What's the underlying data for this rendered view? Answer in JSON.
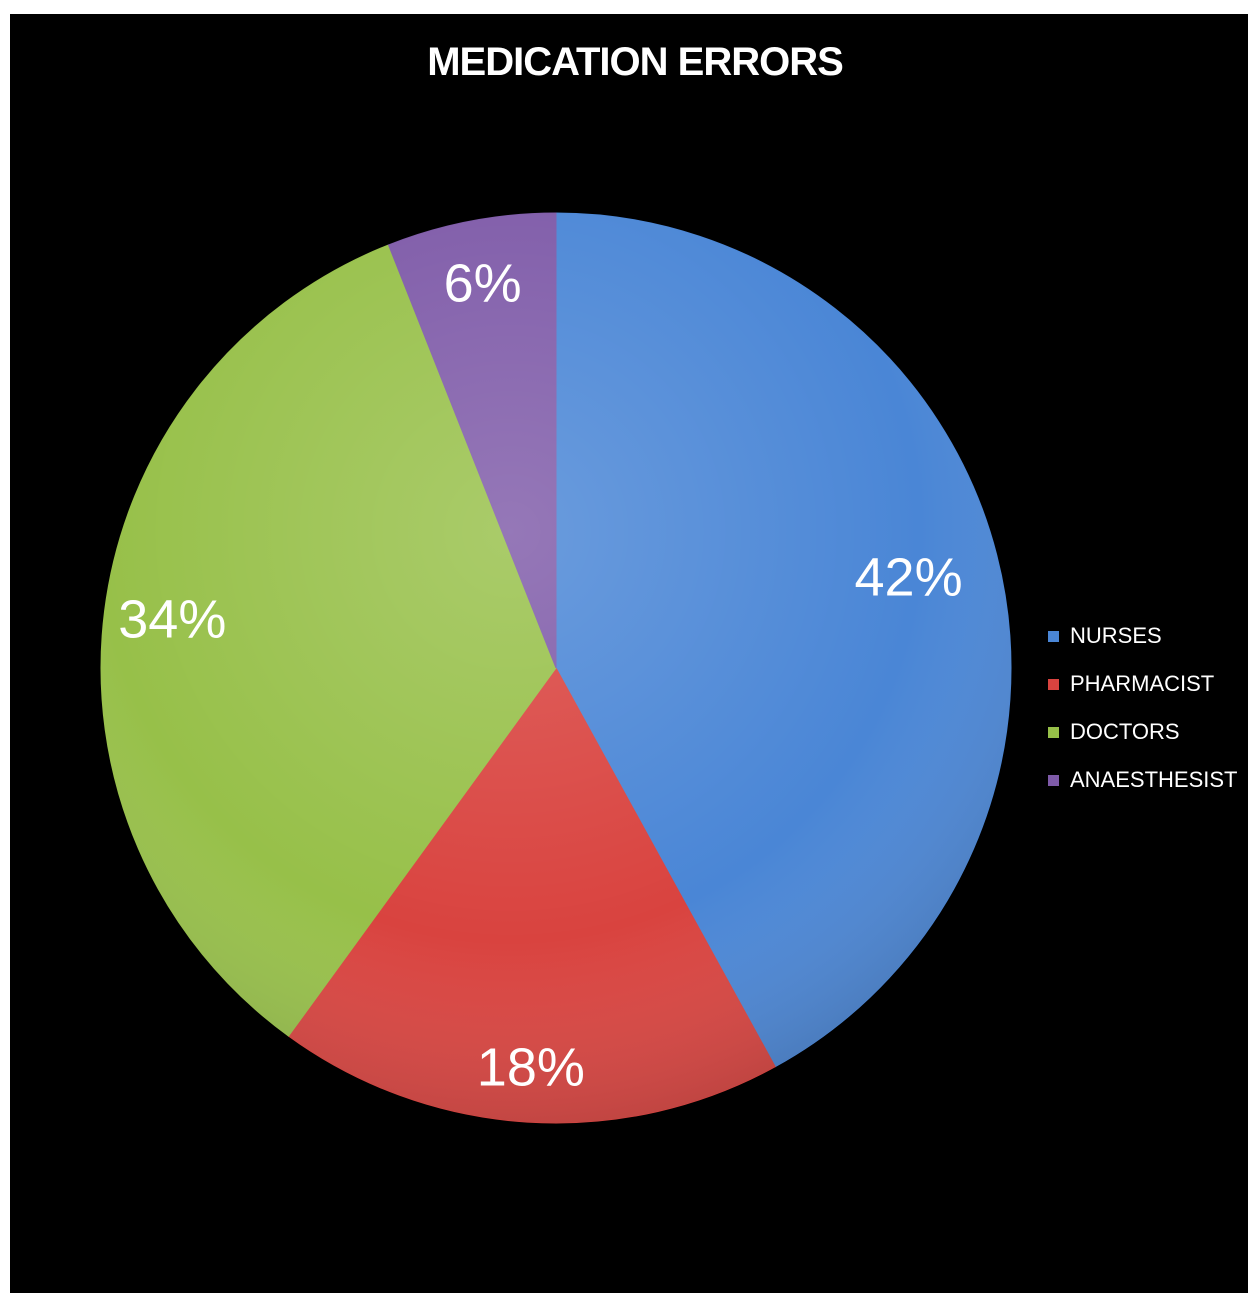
{
  "chart_data": {
    "type": "pie",
    "title": "MEDICATION ERRORS",
    "categories": [
      "NURSES",
      "PHARMACIST",
      "DOCTORS",
      "ANAESTHESIST"
    ],
    "values": [
      42,
      18,
      34,
      6
    ],
    "data_labels": [
      "42%",
      "18%",
      "34%",
      "6%"
    ],
    "colors": [
      "#4a86d6",
      "#d9433f",
      "#97c049",
      "#7e5aa8"
    ],
    "legend_position": "right",
    "background": "#000000"
  }
}
